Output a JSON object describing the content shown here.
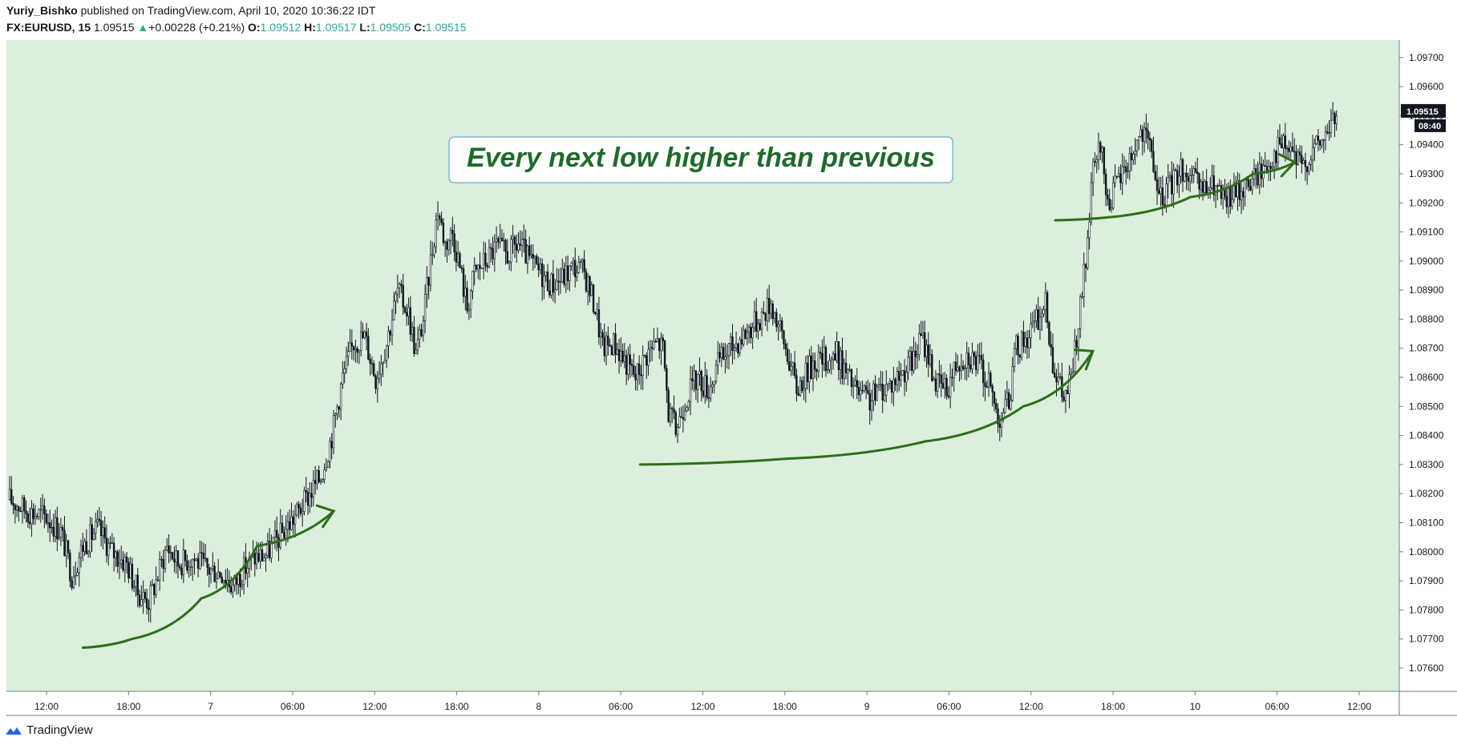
{
  "header": {
    "author": "Yuriy_Bishko",
    "published_text": " published on TradingView.com, April 10, 2020 10:36:22 IDT",
    "symbol": "FX:EURUSD, 15",
    "last": "1.09515",
    "change_arrow": "▲",
    "change": "+0.00228 (+0.21%)",
    "o_label": "O:",
    "o_value": "1.09512",
    "h_label": "H:",
    "h_value": "1.09517",
    "l_label": "L:",
    "l_value": "1.09505",
    "c_label": "C:",
    "c_value": "1.09515"
  },
  "footer": {
    "brand": "TradingView",
    "logo_icon": "tradingview-logo-icon"
  },
  "colors": {
    "plot_background": "#dcefdc",
    "annotation_green": "#2e6e1a",
    "annotation_text": "#1e6b2a",
    "candle": "#131722",
    "callout_border": "#4a90d9"
  },
  "chart_data": {
    "type": "candlestick",
    "instrument": "FX:EURUSD",
    "interval": "15",
    "ylim": [
      1.0752,
      1.0976
    ],
    "y_ticks": [
      "1.09700",
      "1.09600",
      "1.09500",
      "1.09400",
      "1.09300",
      "1.09200",
      "1.09100",
      "1.09000",
      "1.08900",
      "1.08800",
      "1.08700",
      "1.08600",
      "1.08500",
      "1.08400",
      "1.08300",
      "1.08200",
      "1.08100",
      "1.08000",
      "1.07900",
      "1.07800",
      "1.07700",
      "1.07600"
    ],
    "x_ticks": [
      "12:00",
      "18:00",
      "7",
      "06:00",
      "12:00",
      "18:00",
      "8",
      "06:00",
      "12:00",
      "18:00",
      "9",
      "06:00",
      "12:00",
      "18:00",
      "10",
      "06:00",
      "12:00"
    ],
    "last_price_label": "1.09515",
    "countdown_label": "08:40",
    "price_path": [
      [
        0,
        1.0818
      ],
      [
        10,
        1.0814
      ],
      [
        20,
        1.0812
      ],
      [
        28,
        1.0807
      ],
      [
        34,
        1.0792
      ],
      [
        40,
        1.0802
      ],
      [
        48,
        1.0808
      ],
      [
        56,
        1.08
      ],
      [
        64,
        1.0796
      ],
      [
        70,
        1.0786
      ],
      [
        76,
        1.0783
      ],
      [
        80,
        1.079
      ],
      [
        86,
        1.0802
      ],
      [
        92,
        1.0796
      ],
      [
        100,
        1.0798
      ],
      [
        108,
        1.0794
      ],
      [
        116,
        1.0793
      ],
      [
        122,
        1.0788
      ],
      [
        128,
        1.0794
      ],
      [
        134,
        1.0798
      ],
      [
        140,
        1.0799
      ],
      [
        146,
        1.0804
      ],
      [
        152,
        1.0809
      ],
      [
        158,
        1.0814
      ],
      [
        164,
        1.082
      ],
      [
        170,
        1.0826
      ],
      [
        176,
        1.084
      ],
      [
        182,
        1.086
      ],
      [
        188,
        1.0872
      ],
      [
        194,
        1.0874
      ],
      [
        200,
        1.086
      ],
      [
        206,
        1.0872
      ],
      [
        212,
        1.089
      ],
      [
        218,
        1.0882
      ],
      [
        222,
        1.0868
      ],
      [
        226,
        1.088
      ],
      [
        230,
        1.09
      ],
      [
        234,
        1.0918
      ],
      [
        238,
        1.0906
      ],
      [
        242,
        1.091
      ],
      [
        246,
        1.0898
      ],
      [
        250,
        1.0884
      ],
      [
        254,
        1.0896
      ],
      [
        260,
        1.09
      ],
      [
        266,
        1.0905
      ],
      [
        272,
        1.0902
      ],
      [
        278,
        1.0906
      ],
      [
        284,
        1.09
      ],
      [
        290,
        1.0896
      ],
      [
        296,
        1.0892
      ],
      [
        302,
        1.0894
      ],
      [
        308,
        1.0898
      ],
      [
        314,
        1.0896
      ],
      [
        320,
        1.0884
      ],
      [
        324,
        1.087
      ],
      [
        330,
        1.0872
      ],
      [
        336,
        1.0866
      ],
      [
        342,
        1.086
      ],
      [
        348,
        1.0868
      ],
      [
        354,
        1.0872
      ],
      [
        357,
        1.087
      ],
      [
        360,
        1.0848
      ],
      [
        364,
        1.0842
      ],
      [
        370,
        1.0854
      ],
      [
        376,
        1.086
      ],
      [
        382,
        1.0856
      ],
      [
        388,
        1.0866
      ],
      [
        394,
        1.087
      ],
      [
        400,
        1.0874
      ],
      [
        406,
        1.0878
      ],
      [
        412,
        1.0882
      ],
      [
        416,
        1.0886
      ],
      [
        420,
        1.0878
      ],
      [
        426,
        1.0866
      ],
      [
        430,
        1.0856
      ],
      [
        436,
        1.0862
      ],
      [
        440,
        1.0866
      ],
      [
        446,
        1.0866
      ],
      [
        452,
        1.0868
      ],
      [
        458,
        1.086
      ],
      [
        464,
        1.0854
      ],
      [
        470,
        1.0852
      ],
      [
        476,
        1.0856
      ],
      [
        482,
        1.0858
      ],
      [
        488,
        1.0862
      ],
      [
        494,
        1.0866
      ],
      [
        498,
        1.0874
      ],
      [
        502,
        1.0868
      ],
      [
        506,
        1.0858
      ],
      [
        512,
        1.0856
      ],
      [
        518,
        1.0866
      ],
      [
        524,
        1.0868
      ],
      [
        530,
        1.0864
      ],
      [
        536,
        1.0856
      ],
      [
        540,
        1.0846
      ],
      [
        546,
        1.0852
      ],
      [
        550,
        1.087
      ],
      [
        556,
        1.0874
      ],
      [
        562,
        1.088
      ],
      [
        566,
        1.0885
      ],
      [
        570,
        1.0866
      ],
      [
        576,
        1.0852
      ],
      [
        580,
        1.086
      ],
      [
        584,
        1.0878
      ],
      [
        588,
        1.09
      ],
      [
        592,
        1.093
      ],
      [
        596,
        1.094
      ],
      [
        600,
        1.092
      ],
      [
        606,
        1.0928
      ],
      [
        612,
        1.0935
      ],
      [
        618,
        1.0944
      ],
      [
        624,
        1.0938
      ],
      [
        628,
        1.092
      ],
      [
        634,
        1.0926
      ],
      [
        640,
        1.0932
      ],
      [
        646,
        1.0928
      ],
      [
        652,
        1.0924
      ],
      [
        658,
        1.0926
      ],
      [
        664,
        1.092
      ],
      [
        670,
        1.0924
      ],
      [
        676,
        1.0926
      ],
      [
        682,
        1.093
      ],
      [
        688,
        1.0934
      ],
      [
        694,
        1.094
      ],
      [
        700,
        1.0938
      ],
      [
        706,
        1.0932
      ],
      [
        712,
        1.0938
      ],
      [
        718,
        1.0942
      ],
      [
        722,
        1.0948
      ],
      [
        726,
        1.0951
      ]
    ],
    "total_bars": 726
  },
  "annotations": {
    "callout_text": "Every next low higher than previous",
    "curves": [
      {
        "name": "curve-1",
        "points": [
          [
            0.055,
            1.0767
          ],
          [
            0.09,
            1.077
          ],
          [
            0.14,
            1.0784
          ],
          [
            0.18,
            1.0802
          ],
          [
            0.235,
            1.0814
          ]
        ]
      },
      {
        "name": "curve-2",
        "points": [
          [
            0.455,
            1.083
          ],
          [
            0.56,
            1.0832
          ],
          [
            0.66,
            1.0838
          ],
          [
            0.73,
            1.085
          ],
          [
            0.78,
            1.0869
          ]
        ]
      },
      {
        "name": "curve-3",
        "points": [
          [
            0.753,
            1.0914
          ],
          [
            0.79,
            1.0915
          ],
          [
            0.85,
            1.0922
          ],
          [
            0.895,
            1.093
          ],
          [
            0.925,
            1.0934
          ]
        ]
      }
    ]
  }
}
